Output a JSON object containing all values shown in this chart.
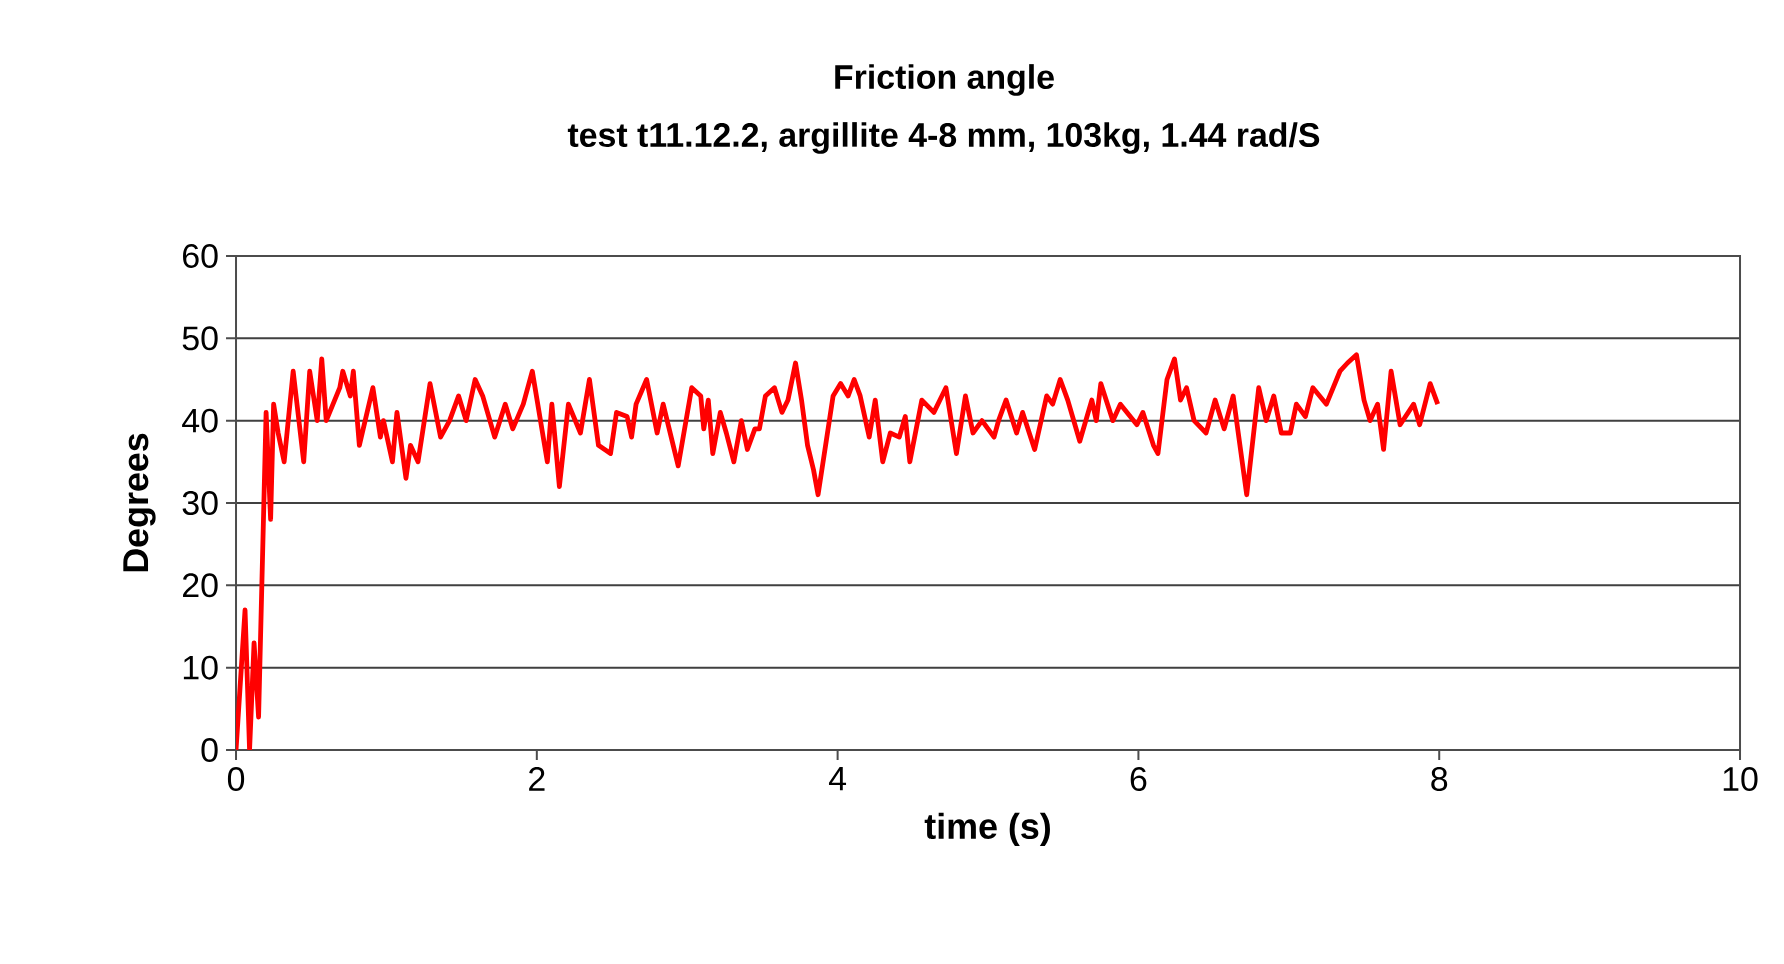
{
  "chart_data": {
    "type": "line",
    "title": "Friction angle",
    "subtitle": "test t11.12.2, argillite 4-8 mm, 103kg, 1.44 rad/S",
    "xlabel": "time (s)",
    "ylabel": "Degrees",
    "xlim": [
      0,
      10
    ],
    "xticks": [
      0,
      2,
      4,
      6,
      8,
      10
    ],
    "ylim": [
      0,
      60
    ],
    "yticks": [
      0,
      10,
      20,
      30,
      40,
      50,
      60
    ],
    "grid": "y",
    "marker": "none",
    "line_style": "solid",
    "series": [
      {
        "color": "#ff0000",
        "x": [
          0.0,
          0.06,
          0.09,
          0.12,
          0.15,
          0.2,
          0.23,
          0.25,
          0.28,
          0.32,
          0.38,
          0.45,
          0.49,
          0.54,
          0.57,
          0.6,
          0.69,
          0.71,
          0.76,
          0.78,
          0.82,
          0.91,
          0.96,
          0.98,
          1.04,
          1.07,
          1.13,
          1.16,
          1.21,
          1.29,
          1.36,
          1.42,
          1.48,
          1.53,
          1.59,
          1.64,
          1.72,
          1.79,
          1.84,
          1.91,
          1.97,
          2.02,
          2.07,
          2.1,
          2.15,
          2.21,
          2.29,
          2.35,
          2.41,
          2.49,
          2.53,
          2.6,
          2.63,
          2.66,
          2.73,
          2.8,
          2.84,
          2.94,
          3.03,
          3.09,
          3.11,
          3.14,
          3.17,
          3.22,
          3.26,
          3.31,
          3.36,
          3.4,
          3.45,
          3.48,
          3.52,
          3.58,
          3.63,
          3.67,
          3.72,
          3.76,
          3.8,
          3.84,
          3.87,
          3.92,
          3.97,
          4.02,
          4.07,
          4.11,
          4.15,
          4.21,
          4.25,
          4.3,
          4.35,
          4.41,
          4.45,
          4.48,
          4.56,
          4.64,
          4.72,
          4.79,
          4.85,
          4.9,
          4.96,
          5.04,
          5.07,
          5.12,
          5.19,
          5.23,
          5.31,
          5.39,
          5.43,
          5.48,
          5.53,
          5.61,
          5.69,
          5.72,
          5.75,
          5.83,
          5.88,
          5.99,
          6.03,
          6.1,
          6.13,
          6.19,
          6.24,
          6.28,
          6.32,
          6.37,
          6.45,
          6.51,
          6.57,
          6.63,
          6.72,
          6.8,
          6.85,
          6.9,
          6.95,
          7.01,
          7.05,
          7.11,
          7.16,
          7.25,
          7.34,
          7.39,
          7.45,
          7.5,
          7.54,
          7.59,
          7.63,
          7.68,
          7.74,
          7.83,
          7.87,
          7.94,
          7.99
        ],
        "values": [
          0,
          17,
          0,
          13,
          4,
          41,
          28,
          42,
          38.5,
          35,
          46,
          35,
          46,
          40,
          47.5,
          40,
          44,
          46,
          43,
          46,
          37,
          44,
          38,
          40,
          35,
          41,
          33,
          37,
          35,
          44.5,
          38,
          40,
          43,
          40,
          45,
          43,
          38,
          42,
          39,
          42,
          46,
          40.5,
          35,
          42,
          32,
          42,
          38.5,
          45,
          37,
          36,
          41,
          40.5,
          38,
          42,
          45,
          38.5,
          42,
          34.5,
          44,
          43,
          39,
          42.5,
          36,
          41,
          38.5,
          35,
          40,
          36.5,
          39,
          39,
          43,
          44,
          41,
          42.5,
          47,
          42.5,
          37,
          34,
          31,
          37,
          43,
          44.5,
          43,
          45,
          43,
          38,
          42.5,
          35,
          38.5,
          38,
          40.5,
          35,
          42.5,
          41,
          44,
          36,
          43,
          38.5,
          40,
          38,
          40,
          42.5,
          38.5,
          41,
          36.5,
          43,
          42,
          45,
          42.5,
          37.5,
          42.5,
          40,
          44.5,
          40,
          42,
          39.5,
          41,
          37,
          36,
          45,
          47.5,
          42.5,
          44,
          40,
          38.5,
          42.5,
          39,
          43,
          31,
          44,
          40,
          43,
          38.5,
          38.5,
          42,
          40.5,
          44,
          42,
          46,
          47,
          48,
          42.5,
          40,
          42,
          36.5,
          46,
          39.5,
          42,
          39.5,
          44.5,
          42
        ]
      }
    ]
  }
}
